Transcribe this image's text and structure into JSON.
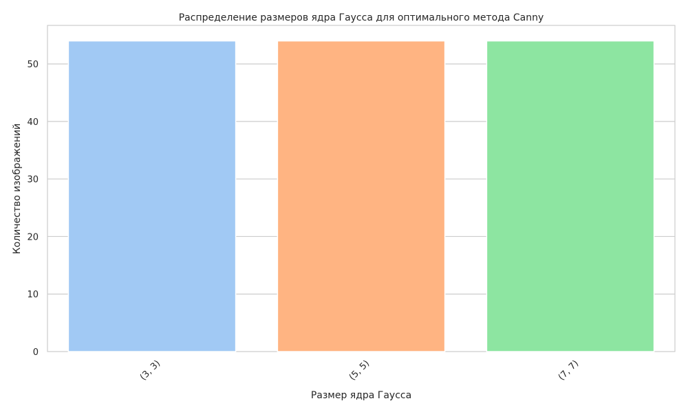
{
  "chart_data": {
    "type": "bar",
    "title": "Распределение размеров ядра Гаусса для оптимального метода Canny",
    "xlabel": "Размер ядра Гаусса",
    "ylabel": "Количество изображений",
    "categories": [
      "(3, 3)",
      "(5, 5)",
      "(7, 7)"
    ],
    "values": [
      54,
      54,
      54
    ],
    "colors": [
      "#a1c9f4",
      "#ffb482",
      "#8de5a1"
    ],
    "ylim": [
      0,
      56.7
    ],
    "yticks": [
      0,
      10,
      20,
      30,
      40,
      50
    ],
    "grid": true,
    "legend": "none",
    "x_tick_rotation_deg": 45
  }
}
